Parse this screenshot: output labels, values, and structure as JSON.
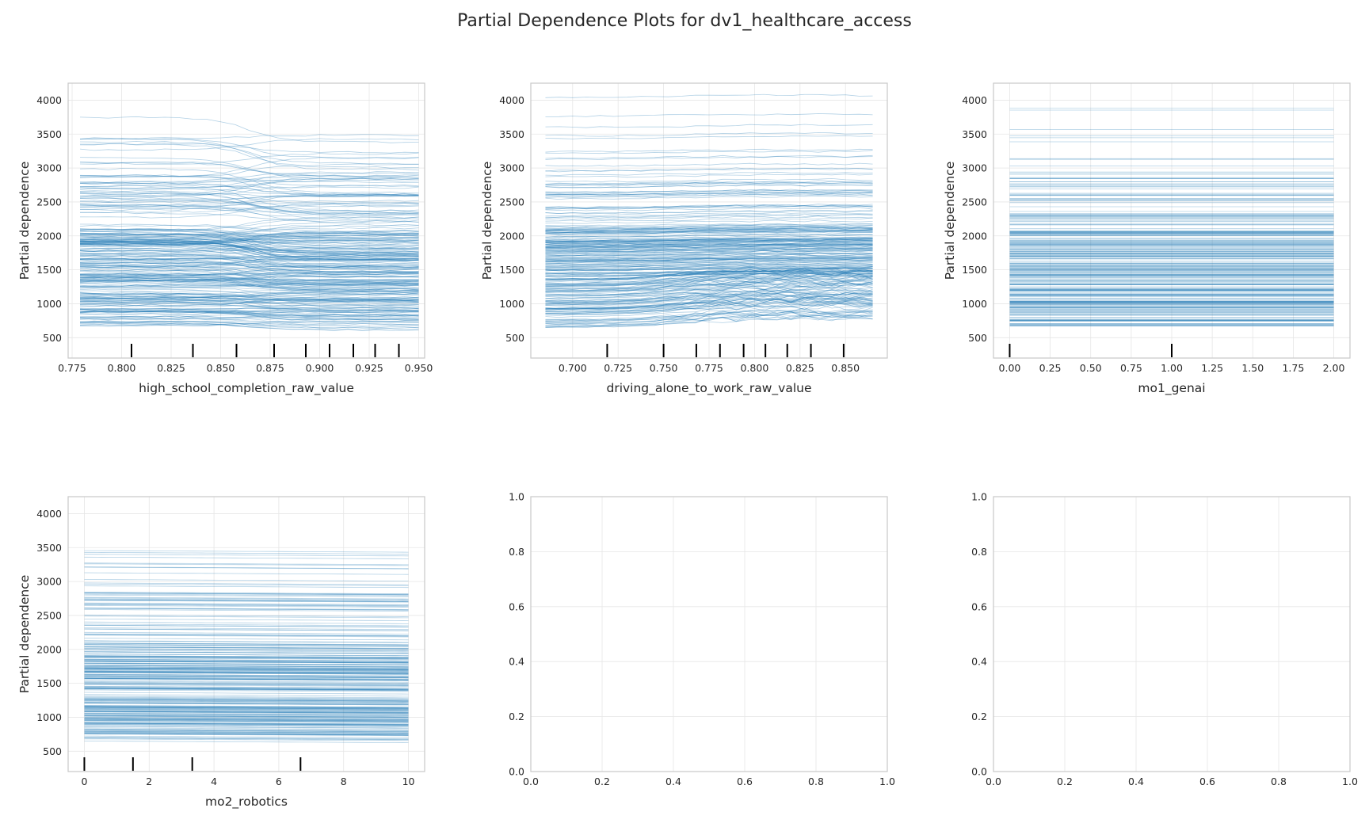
{
  "title": "Partial Dependence Plots for dv1_healthcare_access",
  "colors": {
    "ice_line": "#1f77b4",
    "grid": "#e6e6e6",
    "spine": "#c8c8c8",
    "rug": "#000000"
  },
  "chart_data": [
    {
      "type": "line",
      "kind": "individual-conditional-expectation",
      "xlabel": "high_school_completion_raw_value",
      "ylabel": "Partial dependence",
      "xlim": [
        0.773,
        0.953
      ],
      "ylim": [
        200,
        4250
      ],
      "xticks": [
        "0.775",
        "0.800",
        "0.825",
        "0.850",
        "0.875",
        "0.900",
        "0.925",
        "0.950"
      ],
      "yticks": [
        "500",
        "1000",
        "1500",
        "2000",
        "2500",
        "3000",
        "3500",
        "4000"
      ],
      "x_range": [
        0.779,
        0.95
      ],
      "rug_deciles": [
        0.805,
        0.836,
        0.858,
        0.877,
        0.893,
        0.905,
        0.917,
        0.928,
        0.94
      ],
      "ice_curve_band": [
        430,
        4050
      ],
      "trend": "drop near 0.86-0.88 for many curves",
      "grid": true
    },
    {
      "type": "line",
      "kind": "individual-conditional-expectation",
      "xlabel": "driving_alone_to_work_raw_value",
      "ylabel": "Partial dependence",
      "xlim": [
        0.677,
        0.873
      ],
      "ylim": [
        200,
        4250
      ],
      "xticks": [
        "0.700",
        "0.725",
        "0.750",
        "0.775",
        "0.800",
        "0.825",
        "0.850"
      ],
      "yticks": [
        "500",
        "1000",
        "1500",
        "2000",
        "2500",
        "3000",
        "3500",
        "4000"
      ],
      "x_range": [
        0.685,
        0.865
      ],
      "rug_deciles": [
        0.719,
        0.75,
        0.768,
        0.781,
        0.794,
        0.806,
        0.818,
        0.831,
        0.849
      ],
      "ice_curve_band": [
        440,
        4050
      ],
      "trend": "slight increase for low curves around 0.75-0.78",
      "grid": true
    },
    {
      "type": "line",
      "kind": "individual-conditional-expectation",
      "xlabel": "mo1_genai",
      "ylabel": "Partial dependence",
      "xlim": [
        -0.1,
        2.1
      ],
      "ylim": [
        200,
        4250
      ],
      "xticks": [
        "0.00",
        "0.25",
        "0.50",
        "0.75",
        "1.00",
        "1.25",
        "1.50",
        "1.75",
        "2.00"
      ],
      "yticks": [
        "500",
        "1000",
        "1500",
        "2000",
        "2500",
        "3000",
        "3500",
        "4000"
      ],
      "x_range": [
        0,
        2
      ],
      "rug_deciles": [
        0,
        1
      ],
      "ice_curve_band": [
        430,
        4050
      ],
      "trend": "flat",
      "grid": true
    },
    {
      "type": "line",
      "kind": "individual-conditional-expectation",
      "xlabel": "mo2_robotics",
      "ylabel": "Partial dependence",
      "xlim": [
        -0.5,
        10.5
      ],
      "ylim": [
        200,
        4250
      ],
      "xticks": [
        "0",
        "2",
        "4",
        "6",
        "8",
        "10"
      ],
      "yticks": [
        "500",
        "1000",
        "1500",
        "2000",
        "2500",
        "3000",
        "3500",
        "4000"
      ],
      "x_range": [
        0,
        10
      ],
      "rug_deciles": [
        0,
        1.5,
        3.33,
        6.67
      ],
      "ice_curve_band": [
        430,
        4050
      ],
      "trend": "flat, slight decrease",
      "grid": true
    },
    {
      "type": "empty",
      "xlim": [
        0,
        1
      ],
      "ylim": [
        0,
        1
      ],
      "xticks": [
        "0.0",
        "0.2",
        "0.4",
        "0.6",
        "0.8",
        "1.0"
      ],
      "yticks": [
        "0.0",
        "0.2",
        "0.4",
        "0.6",
        "0.8",
        "1.0"
      ],
      "grid": true
    },
    {
      "type": "empty",
      "xlim": [
        0,
        1
      ],
      "ylim": [
        0,
        1
      ],
      "xticks": [
        "0.0",
        "0.2",
        "0.4",
        "0.6",
        "0.8",
        "1.0"
      ],
      "yticks": [
        "0.0",
        "0.2",
        "0.4",
        "0.6",
        "0.8",
        "1.0"
      ],
      "grid": true
    }
  ]
}
